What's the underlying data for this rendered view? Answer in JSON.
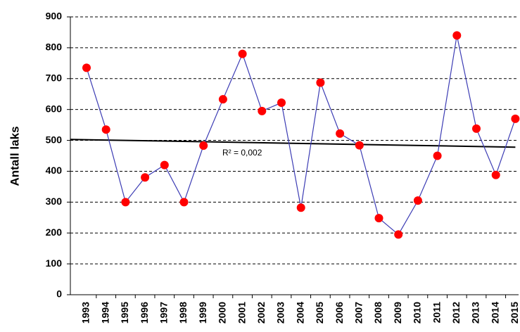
{
  "chart_data": {
    "type": "line",
    "ylabel": "Antall laks",
    "categories": [
      "1993",
      "1994",
      "1995",
      "1996",
      "1997",
      "1998",
      "1999",
      "2000",
      "2001",
      "2002",
      "2003",
      "2004",
      "2005",
      "2006",
      "2007",
      "2008",
      "2009",
      "2010",
      "2011",
      "2012",
      "2013",
      "2014",
      "2015"
    ],
    "series": [
      {
        "name": "Antall laks",
        "color": "#3c3cb4",
        "marker_color": "#ff0000",
        "values": [
          735,
          535,
          300,
          380,
          420,
          300,
          483,
          633,
          780,
          595,
          622,
          282,
          687,
          522,
          484,
          248,
          195,
          305,
          450,
          840,
          538,
          388,
          570
        ]
      }
    ],
    "trendline": {
      "start": 503,
      "end": 478,
      "color": "#000000"
    },
    "annotation": "R² = 0,002",
    "ylim": [
      0,
      900
    ],
    "yticks": [
      0,
      100,
      200,
      300,
      400,
      500,
      600,
      700,
      800,
      900
    ],
    "grid": true
  }
}
